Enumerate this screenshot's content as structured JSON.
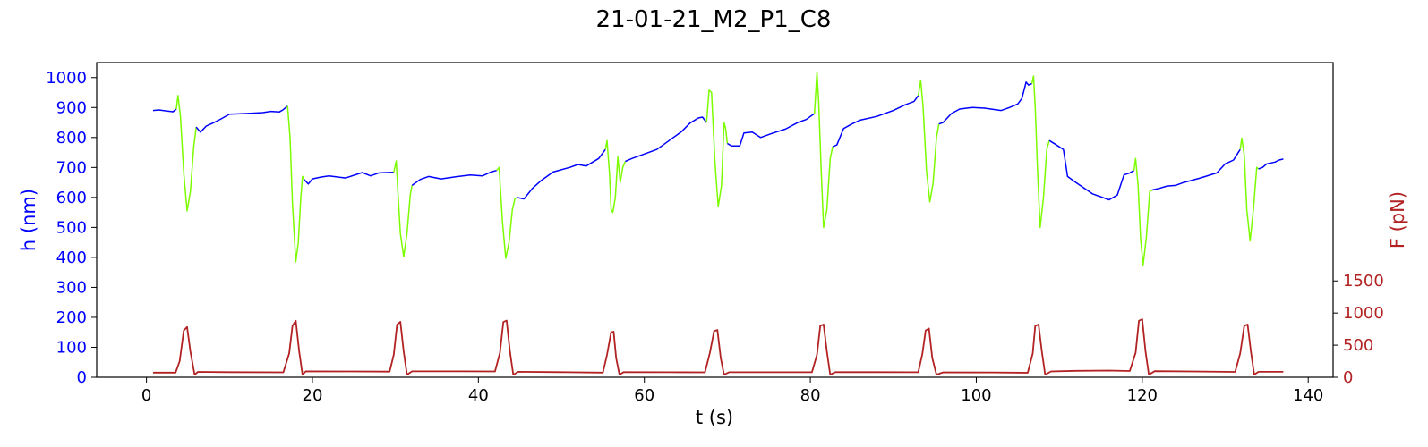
{
  "chart_data": {
    "type": "line",
    "title": "21-01-21_M2_P1_C8",
    "xlabel": "t (s)",
    "ylabel_left": "h (nm)",
    "ylabel_right": "F (pN)",
    "xlim": [
      -6,
      143
    ],
    "ylim_left": [
      0,
      1050
    ],
    "ylim_right": [
      0,
      4900
    ],
    "x_ticks": [
      0,
      20,
      40,
      60,
      80,
      100,
      120,
      140
    ],
    "y_left_ticks": [
      0,
      100,
      200,
      300,
      400,
      500,
      600,
      700,
      800,
      900,
      1000
    ],
    "y_right_ticks": [
      0,
      500,
      1000,
      1500
    ],
    "grid": false,
    "colors": {
      "height_rest": "#0000ff",
      "height_pulse": "#7cfc00",
      "force": "#b22222",
      "left_axis": "#0000ff",
      "right_axis": "#b22222"
    },
    "series": [
      {
        "axis": "left",
        "color": "#0000ff",
        "x": [
          0.8,
          1.5,
          2.5,
          3.2,
          3.6
        ],
        "y": [
          890,
          892,
          888,
          886,
          895
        ]
      },
      {
        "axis": "left",
        "color": "#7cfc00",
        "x": [
          3.6,
          3.8,
          4.1,
          4.5,
          4.9,
          5.3,
          5.7,
          6.0
        ],
        "y": [
          895,
          940,
          870,
          680,
          555,
          620,
          770,
          835
        ]
      },
      {
        "axis": "left",
        "color": "#0000ff",
        "x": [
          6.0,
          6.5,
          7.2,
          8.0,
          9.0,
          10.0,
          12.0,
          14.0,
          15.0,
          16.0,
          16.5,
          17.0
        ],
        "y": [
          835,
          818,
          838,
          848,
          862,
          878,
          880,
          883,
          887,
          885,
          893,
          905
        ]
      },
      {
        "axis": "left",
        "color": "#7cfc00",
        "x": [
          17.0,
          17.3,
          17.6,
          18.0,
          18.3,
          18.6,
          18.8,
          19.0
        ],
        "y": [
          905,
          800,
          580,
          385,
          450,
          600,
          670,
          660
        ]
      },
      {
        "axis": "left",
        "color": "#0000ff",
        "x": [
          19.0,
          19.5,
          20.0,
          21.0,
          22.0,
          24.0,
          26.0,
          27.0,
          28.0,
          29.0,
          29.8
        ],
        "y": [
          660,
          645,
          662,
          668,
          672,
          665,
          683,
          672,
          682,
          683,
          684
        ]
      },
      {
        "axis": "left",
        "color": "#7cfc00",
        "x": [
          29.8,
          30.1,
          30.3,
          30.6,
          31.0,
          31.4,
          31.8,
          32.0
        ],
        "y": [
          684,
          722,
          620,
          480,
          402,
          480,
          610,
          640
        ]
      },
      {
        "axis": "left",
        "color": "#0000ff",
        "x": [
          32.0,
          33.0,
          34.0,
          35.5,
          37.0,
          39.0,
          40.5,
          41.5,
          42.2
        ],
        "y": [
          640,
          660,
          670,
          662,
          668,
          675,
          672,
          685,
          690
        ]
      },
      {
        "axis": "left",
        "color": "#7cfc00",
        "x": [
          42.2,
          42.5,
          42.9,
          43.3,
          43.7,
          44.1,
          44.4,
          44.6
        ],
        "y": [
          690,
          700,
          520,
          397,
          450,
          560,
          595,
          600
        ]
      },
      {
        "axis": "left",
        "color": "#0000ff",
        "x": [
          44.6,
          45.5,
          46.5,
          47.5,
          49.0,
          51.0,
          52.0,
          53.0,
          54.5,
          55.3
        ],
        "y": [
          600,
          595,
          630,
          655,
          685,
          700,
          710,
          705,
          730,
          760
        ]
      },
      {
        "axis": "left",
        "color": "#7cfc00",
        "x": [
          55.3,
          55.5,
          55.8,
          56.0,
          56.2,
          56.5,
          56.8,
          57.1,
          57.4,
          57.7
        ],
        "y": [
          760,
          790,
          680,
          560,
          550,
          600,
          735,
          650,
          700,
          720
        ]
      },
      {
        "axis": "left",
        "color": "#0000ff",
        "x": [
          57.7,
          58.5,
          59.5,
          60.5,
          61.5,
          63.0,
          64.5,
          65.5,
          66.5,
          67.0,
          67.5
        ],
        "y": [
          720,
          730,
          740,
          750,
          760,
          790,
          820,
          848,
          865,
          868,
          850
        ]
      },
      {
        "axis": "left",
        "color": "#7cfc00",
        "x": [
          67.5,
          67.8,
          68.1,
          68.5,
          68.9,
          69.3,
          69.6,
          69.8,
          70.0
        ],
        "y": [
          850,
          958,
          950,
          720,
          570,
          640,
          850,
          830,
          780
        ]
      },
      {
        "axis": "left",
        "color": "#0000ff",
        "x": [
          70.0,
          70.5,
          71.5,
          72.0,
          73.0,
          74.0,
          75.5,
          77.0,
          78.5,
          79.5,
          80.0,
          80.5
        ],
        "y": [
          780,
          772,
          772,
          815,
          818,
          800,
          815,
          828,
          850,
          860,
          870,
          880
        ]
      },
      {
        "axis": "left",
        "color": "#7cfc00",
        "x": [
          80.5,
          80.8,
          81.0,
          81.3,
          81.6,
          82.0,
          82.4,
          82.7
        ],
        "y": [
          880,
          1018,
          920,
          700,
          500,
          560,
          730,
          770
        ]
      },
      {
        "axis": "left",
        "color": "#0000ff",
        "x": [
          82.7,
          83.2,
          84.0,
          85.0,
          86.0,
          88.0,
          90.0,
          91.5,
          92.5,
          93.0
        ],
        "y": [
          770,
          775,
          830,
          845,
          858,
          870,
          890,
          910,
          920,
          940
        ]
      },
      {
        "axis": "left",
        "color": "#7cfc00",
        "x": [
          93.0,
          93.3,
          93.6,
          94.0,
          94.4,
          94.8,
          95.2,
          95.5
        ],
        "y": [
          940,
          990,
          900,
          690,
          585,
          650,
          800,
          845
        ]
      },
      {
        "axis": "left",
        "color": "#0000ff",
        "x": [
          95.5,
          96.0,
          97.0,
          98.0,
          99.5,
          101.0,
          103.0,
          104.0,
          105.0,
          105.5,
          106.0,
          106.3,
          106.7
        ],
        "y": [
          845,
          850,
          880,
          895,
          900,
          898,
          890,
          900,
          912,
          930,
          985,
          975,
          980
        ]
      },
      {
        "axis": "left",
        "color": "#7cfc00",
        "x": [
          106.7,
          106.9,
          107.1,
          107.4,
          107.7,
          108.1,
          108.5,
          108.8
        ],
        "y": [
          980,
          1005,
          900,
          680,
          500,
          600,
          760,
          790
        ]
      },
      {
        "axis": "left",
        "color": "#0000ff",
        "x": [
          108.8,
          109.5,
          110.5,
          111.0,
          112.0,
          114.0,
          116.0,
          117.0,
          117.8,
          118.5,
          119.0
        ],
        "y": [
          790,
          778,
          760,
          670,
          650,
          612,
          592,
          608,
          675,
          682,
          690
        ]
      },
      {
        "axis": "left",
        "color": "#7cfc00",
        "x": [
          119.0,
          119.2,
          119.5,
          119.8,
          120.1,
          120.5,
          120.9,
          121.2
        ],
        "y": [
          690,
          730,
          640,
          460,
          375,
          470,
          620,
          625
        ]
      },
      {
        "axis": "left",
        "color": "#0000ff",
        "x": [
          121.2,
          122.0,
          123.0,
          124.0,
          125.0,
          127.0,
          129.0,
          130.0,
          131.0,
          131.8
        ],
        "y": [
          625,
          630,
          638,
          640,
          650,
          665,
          682,
          712,
          725,
          760
        ]
      },
      {
        "axis": "left",
        "color": "#7cfc00",
        "x": [
          131.8,
          132.0,
          132.3,
          132.6,
          133.0,
          133.4,
          133.8,
          134.0
        ],
        "y": [
          760,
          798,
          740,
          560,
          455,
          560,
          700,
          695
        ]
      },
      {
        "axis": "left",
        "color": "#0000ff",
        "x": [
          134.0,
          134.5,
          135.0,
          135.5,
          136.0,
          136.5,
          137.0
        ],
        "y": [
          695,
          700,
          712,
          715,
          718,
          725,
          728
        ]
      },
      {
        "axis": "right",
        "color": "#b22222",
        "x": [
          0.8,
          3.5,
          4.0,
          4.5,
          4.9,
          5.3,
          5.8,
          6.2,
          10.0,
          16.5,
          17.2,
          17.6,
          18.0,
          18.4,
          18.8,
          19.2,
          25.0,
          29.3,
          29.8,
          30.2,
          30.6,
          31.0,
          31.4,
          32.0,
          38.0,
          42.0,
          42.6,
          43.0,
          43.4,
          43.8,
          44.2,
          44.8,
          50.0,
          55.0,
          55.5,
          56.0,
          56.3,
          56.6,
          57.0,
          57.5,
          63.0,
          67.3,
          67.9,
          68.4,
          68.8,
          69.2,
          69.6,
          70.2,
          75.0,
          80.2,
          80.8,
          81.2,
          81.6,
          82.0,
          82.4,
          83.0,
          88.0,
          93.0,
          93.5,
          93.9,
          94.3,
          94.7,
          95.2,
          96.0,
          102.0,
          106.2,
          106.8,
          107.1,
          107.5,
          107.9,
          108.3,
          109.0,
          112.0,
          116.0,
          118.5,
          119.2,
          119.6,
          120.0,
          120.4,
          120.8,
          121.5,
          126.0,
          131.2,
          131.8,
          132.3,
          132.7,
          133.1,
          133.5,
          134.0,
          137.0
        ],
        "y": [
          73,
          73,
          250,
          730,
          783,
          400,
          40,
          84,
          80,
          77,
          370,
          800,
          880,
          400,
          40,
          92,
          90,
          88,
          350,
          820,
          863,
          400,
          40,
          92,
          92,
          90,
          380,
          860,
          883,
          400,
          40,
          85,
          80,
          73,
          350,
          700,
          710,
          300,
          40,
          80,
          78,
          77,
          380,
          720,
          736,
          300,
          40,
          78,
          78,
          78,
          350,
          800,
          823,
          400,
          40,
          80,
          80,
          78,
          360,
          730,
          758,
          300,
          40,
          76,
          75,
          70,
          370,
          800,
          823,
          400,
          40,
          90,
          100,
          105,
          98,
          380,
          880,
          905,
          400,
          40,
          95,
          90,
          84,
          370,
          800,
          823,
          400,
          40,
          85,
          85
        ]
      }
    ]
  }
}
